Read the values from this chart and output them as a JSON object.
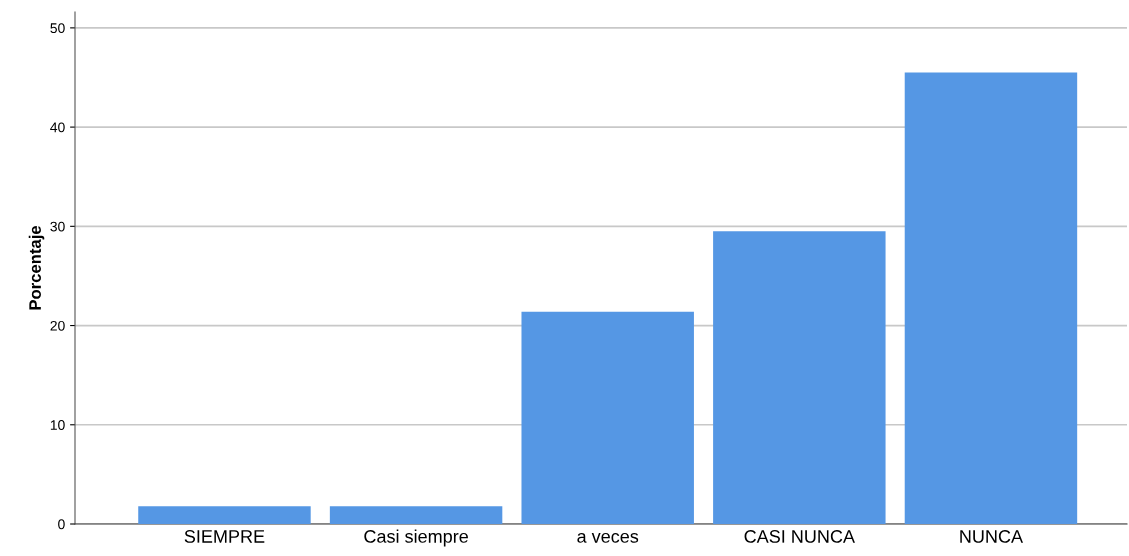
{
  "chart_data": {
    "type": "bar",
    "ylabel": "Porcentaje",
    "categories": [
      "SIEMPRE",
      "Casi siempre",
      "a veces",
      "CASI NUNCA",
      "NUNCA"
    ],
    "values": [
      1.8,
      1.8,
      21.4,
      29.5,
      45.5
    ],
    "color": "#5597e4",
    "ylim": [
      0,
      51.6
    ],
    "yticks": [
      0,
      10,
      20,
      30,
      40,
      50
    ],
    "grid": "y",
    "legend": false
  }
}
